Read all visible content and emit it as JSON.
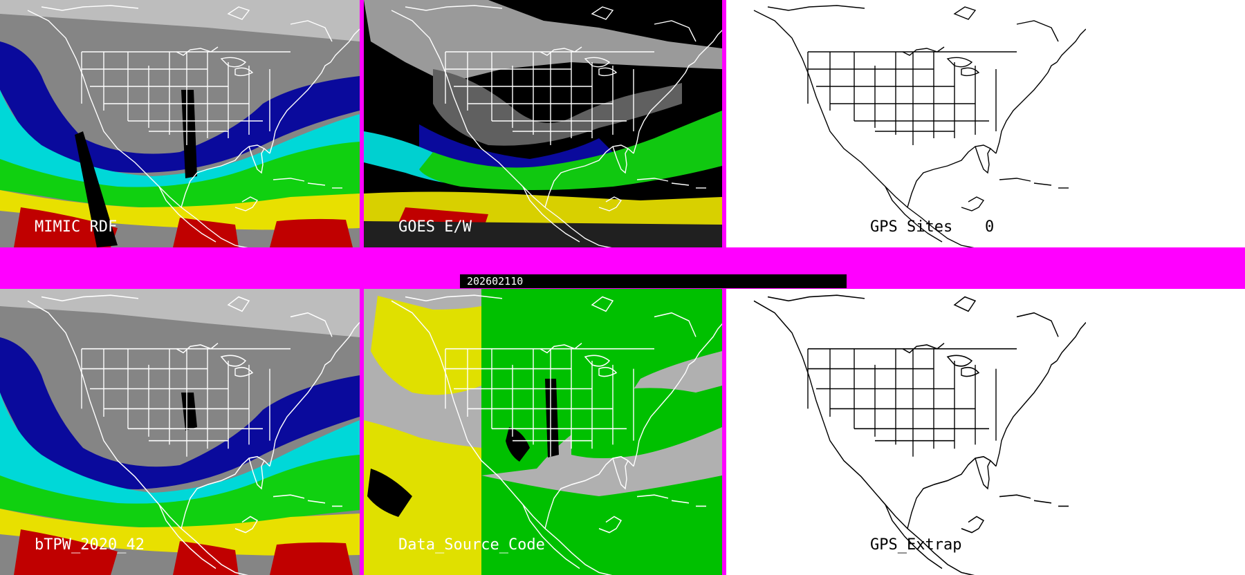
{
  "panels": {
    "mimic": {
      "label": "MIMIC RDF"
    },
    "goes": {
      "label": "GOES E/W"
    },
    "gps_sites": {
      "label": "GPS Sites",
      "count": "0"
    },
    "btpw": {
      "label": "bTPW_2020_42"
    },
    "data_source": {
      "label": "Data_Source_Code"
    },
    "gps_extrap": {
      "label": "GPS_Extrap"
    }
  },
  "timestamp": "202602110",
  "colors": {
    "divider": "#ff00ff",
    "dry_gray": "#808080",
    "moist_blue": "#0a0a9c",
    "cyan": "#00e0e0",
    "green": "#10d010",
    "yellow": "#e8e000",
    "red": "#c00000",
    "source_yellow": "#e0e000",
    "source_green": "#00c000",
    "source_gray": "#b0b0b0"
  }
}
